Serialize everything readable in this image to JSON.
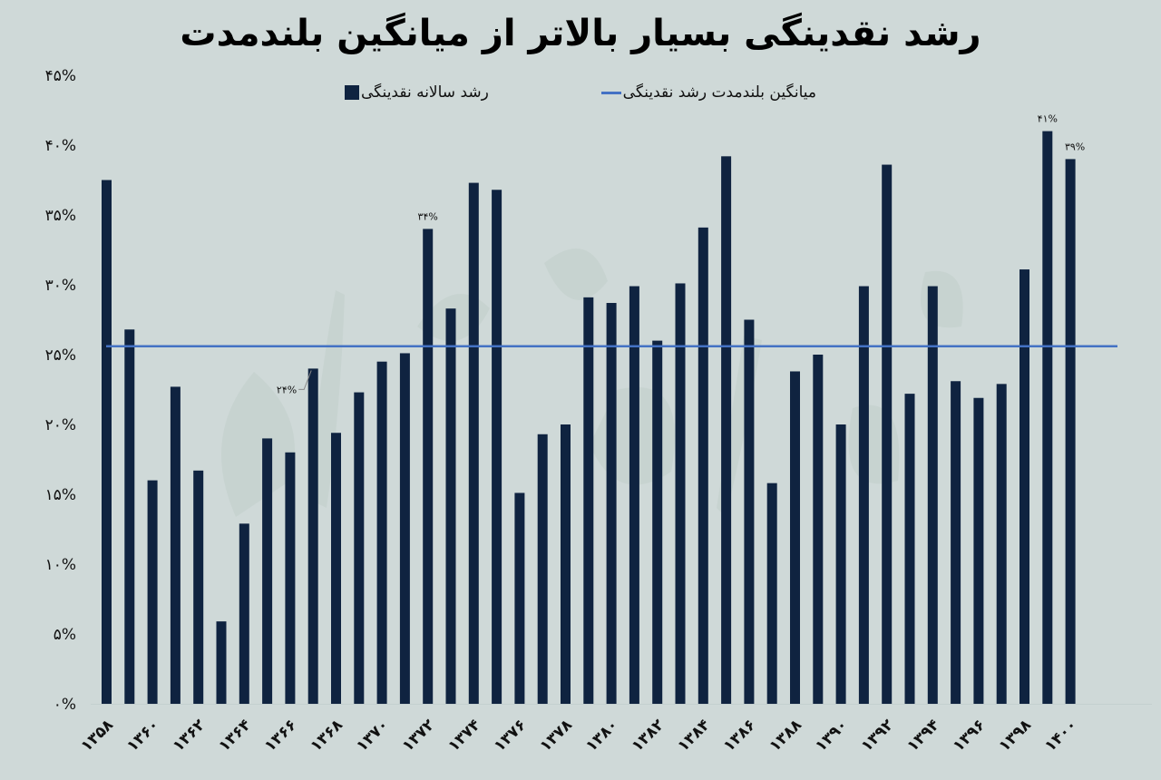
{
  "title": "رشد نقدینگی بسیار بالاتر از میانگین بلندمدت",
  "legend": [
    {
      "label": "میانگین بلندمدت رشد نقدینگی",
      "type": "line",
      "color": "#4472c4"
    },
    {
      "label": "رشد سالانه نقدینگی",
      "type": "bar",
      "color": "#0f2340"
    }
  ],
  "y_axis": {
    "ticks": [
      "۰%",
      "۵%",
      "۱۰%",
      "۱۵%",
      "۲۰%",
      "۲۵%",
      "۳۰%",
      "۳۵%",
      "۴۰%",
      "۴۵%"
    ],
    "tick_values": [
      0,
      5,
      10,
      15,
      20,
      25,
      30,
      35,
      40,
      45
    ]
  },
  "x_axis": {
    "tick_labels": [
      "۱۳۵۸",
      "۱۳۶۰",
      "۱۳۶۲",
      "۱۳۶۴",
      "۱۳۶۶",
      "۱۳۶۸",
      "۱۳۷۰",
      "۱۳۷۲",
      "۱۳۷۴",
      "۱۳۷۶",
      "۱۳۷۸",
      "۱۳۸۰",
      "۱۳۸۲",
      "۱۳۸۴",
      "۱۳۸۶",
      "۱۳۸۸",
      "۱۳۹۰",
      "۱۳۹۲",
      "۱۳۹۴",
      "۱۳۹۶",
      "۱۳۹۸",
      "۱۴۰۰"
    ]
  },
  "data_labels": [
    {
      "year": 1367,
      "text": "۲۴%"
    },
    {
      "year": 1372,
      "text": "۳۴%"
    },
    {
      "year": 1399,
      "text": "۴۱%"
    },
    {
      "year": 1400,
      "text": "۳۹%"
    }
  ],
  "colors": {
    "background": "#cfd9d8",
    "bar": "#0f2340",
    "average_line": "#4472c4"
  },
  "chart_data": {
    "type": "bar",
    "title": "رشد نقدینگی بسیار بالاتر از میانگین بلندمدت",
    "xlabel": "",
    "ylabel": "",
    "ylim": [
      0,
      45
    ],
    "grid": false,
    "legend_position": "top",
    "categories": [
      1358,
      1359,
      1360,
      1361,
      1362,
      1363,
      1364,
      1365,
      1366,
      1367,
      1368,
      1369,
      1370,
      1371,
      1372,
      1373,
      1374,
      1375,
      1376,
      1377,
      1378,
      1379,
      1380,
      1381,
      1382,
      1383,
      1384,
      1385,
      1386,
      1387,
      1388,
      1389,
      1390,
      1391,
      1392,
      1393,
      1394,
      1395,
      1396,
      1397,
      1398,
      1399,
      1400
    ],
    "series": [
      {
        "name": "رشد سالانه نقدینگی",
        "type": "bar",
        "values": [
          37.5,
          26.8,
          16.0,
          22.7,
          16.7,
          5.9,
          12.9,
          19.0,
          18.0,
          24.0,
          19.4,
          22.3,
          24.5,
          25.1,
          34.0,
          28.3,
          37.3,
          36.8,
          15.1,
          19.3,
          20.0,
          29.1,
          28.7,
          29.9,
          26.0,
          30.1,
          34.1,
          39.2,
          27.5,
          15.8,
          23.8,
          25.0,
          20.0,
          29.9,
          38.6,
          22.2,
          29.9,
          23.1,
          21.9,
          22.9,
          31.1,
          41.0,
          39.0
        ]
      },
      {
        "name": "میانگین بلندمدت رشد نقدینگی",
        "type": "line",
        "values_constant": 25.6
      }
    ]
  }
}
